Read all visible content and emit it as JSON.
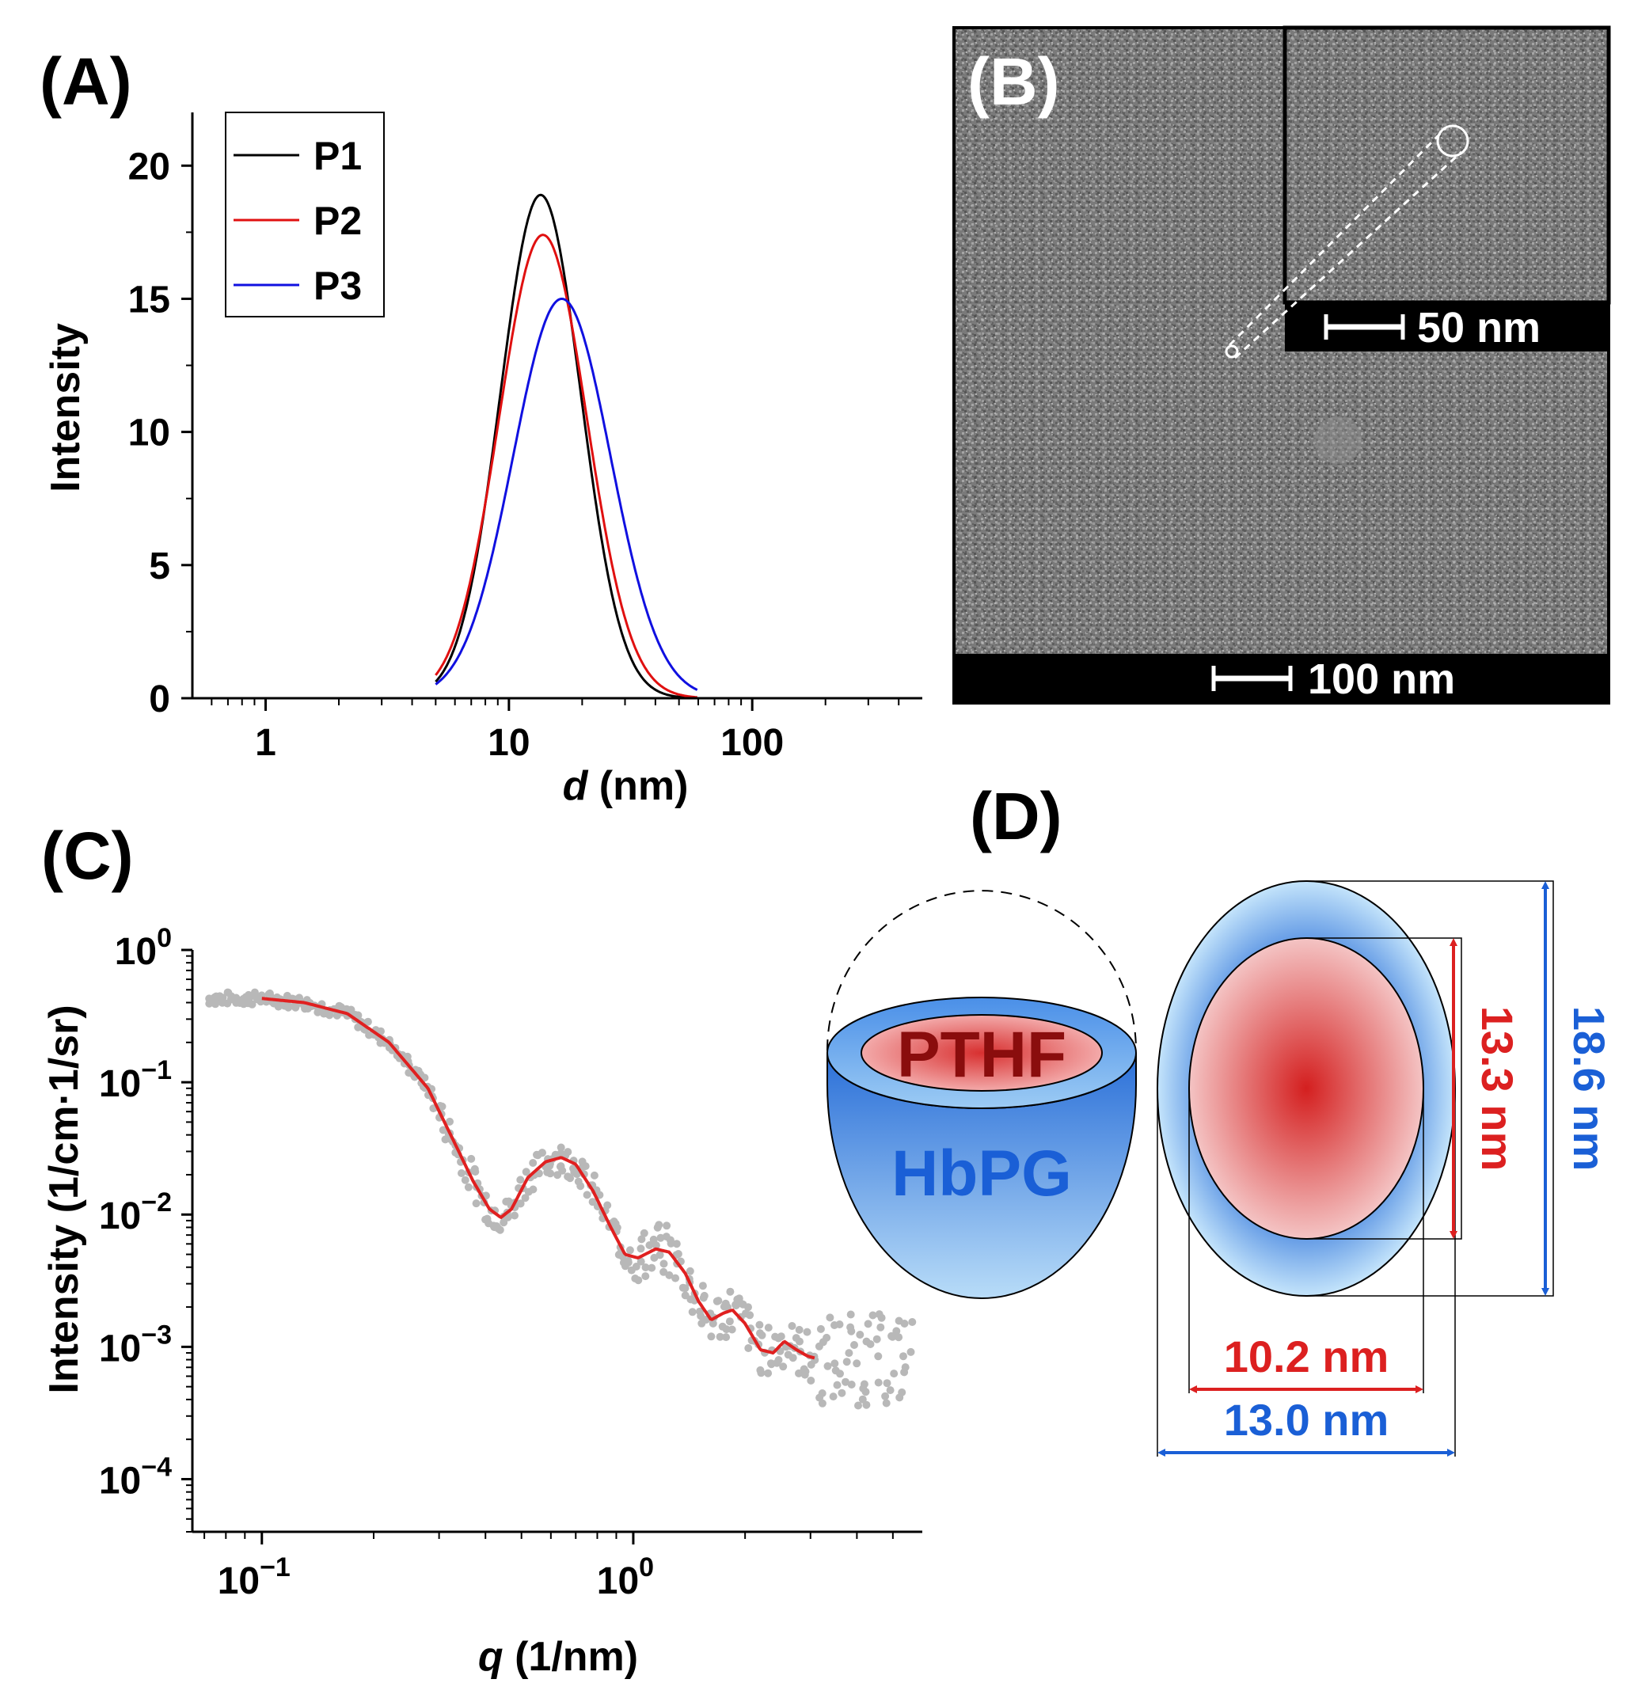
{
  "panels": {
    "a": "(A)",
    "b": "(B)",
    "c": "(C)",
    "d": "(D)"
  },
  "chart_data": [
    {
      "id": "A",
      "type": "line",
      "xscale": "log",
      "xlim": [
        0.5,
        500
      ],
      "ylim": [
        0,
        22
      ],
      "xlabel_italic": "d",
      "xlabel_rest": " (nm)",
      "ylabel": "Intensity",
      "xticks": [
        {
          "v": 1,
          "label": "1"
        },
        {
          "v": 10,
          "label": "10"
        },
        {
          "v": 100,
          "label": "100"
        }
      ],
      "yticks": [
        0,
        5,
        10,
        15,
        20
      ],
      "legend_position": "top-left",
      "series": [
        {
          "name": "P1",
          "color": "#000000",
          "peak_d": 13.5,
          "peak_value": 18.9,
          "log_sigma": 0.165
        },
        {
          "name": "P2",
          "color": "#e01010",
          "peak_d": 13.8,
          "peak_value": 17.4,
          "log_sigma": 0.18
        },
        {
          "name": "P3",
          "color": "#1010e0",
          "peak_d": 16.5,
          "peak_value": 15.0,
          "log_sigma": 0.2
        }
      ]
    },
    {
      "id": "C",
      "type": "scatter",
      "xscale": "log",
      "yscale": "log",
      "xlim": [
        0.065,
        6
      ],
      "ylim": [
        4e-05,
        1
      ],
      "xlabel_italic": "q",
      "xlabel_rest": " (1/nm)",
      "ylabel": "Intensity (1/cm·1/sr)",
      "xticks": [
        {
          "v": 0.1,
          "base": "10",
          "exp": "−1"
        },
        {
          "v": 1,
          "base": "10",
          "exp": "0"
        }
      ],
      "yticks": [
        {
          "v": 1,
          "base": "10",
          "exp": "0"
        },
        {
          "v": 0.1,
          "base": "10",
          "exp": "−1"
        },
        {
          "v": 0.01,
          "base": "10",
          "exp": "−2"
        },
        {
          "v": 0.001,
          "base": "10",
          "exp": "−3"
        },
        {
          "v": 0.0001,
          "base": "10",
          "exp": "−4"
        }
      ],
      "series": [
        {
          "name": "data",
          "color": "#b8b8b8"
        },
        {
          "name": "fit",
          "color": "#e02020",
          "points": [
            [
              0.1,
              0.43
            ],
            [
              0.13,
              0.4
            ],
            [
              0.17,
              0.33
            ],
            [
              0.22,
              0.2
            ],
            [
              0.28,
              0.09
            ],
            [
              0.33,
              0.035
            ],
            [
              0.37,
              0.018
            ],
            [
              0.41,
              0.011
            ],
            [
              0.44,
              0.0095
            ],
            [
              0.47,
              0.011
            ],
            [
              0.52,
              0.019
            ],
            [
              0.58,
              0.025
            ],
            [
              0.64,
              0.027
            ],
            [
              0.7,
              0.024
            ],
            [
              0.78,
              0.015
            ],
            [
              0.87,
              0.008
            ],
            [
              0.95,
              0.005
            ],
            [
              1.03,
              0.0047
            ],
            [
              1.15,
              0.0055
            ],
            [
              1.25,
              0.0052
            ],
            [
              1.38,
              0.0036
            ],
            [
              1.5,
              0.0022
            ],
            [
              1.62,
              0.0016
            ],
            [
              1.75,
              0.0018
            ],
            [
              1.85,
              0.0019
            ],
            [
              2.0,
              0.0015
            ],
            [
              2.2,
              0.00095
            ],
            [
              2.38,
              0.0009
            ],
            [
              2.55,
              0.0011
            ],
            [
              2.75,
              0.00095
            ],
            [
              2.95,
              0.00085
            ],
            [
              3.1,
              0.00082
            ]
          ]
        }
      ]
    }
  ],
  "tem": {
    "scalebar_main": "100 nm",
    "scalebar_inset": "50 nm"
  },
  "schematic": {
    "core_label": "PTHF",
    "shell_label": "HbPG",
    "core_height": "13.3 nm",
    "total_height": "18.6 nm",
    "core_width": "10.2 nm",
    "total_width": "13.0 nm",
    "colors": {
      "red": "#dc2020",
      "blue": "#1a5fd6"
    }
  }
}
